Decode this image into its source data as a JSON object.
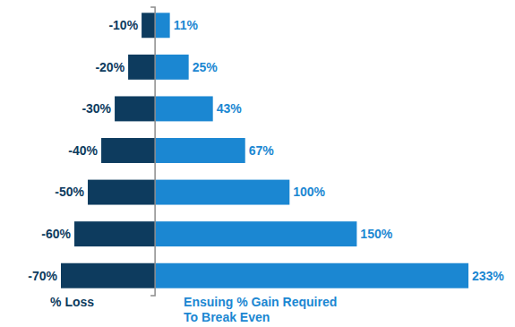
{
  "chart_data": {
    "type": "bar",
    "orientation": "horizontal",
    "data_labels": true,
    "tick_labels": false,
    "legend": "bottom",
    "xlim": [
      -70,
      233
    ],
    "series": [
      {
        "name": "% Loss",
        "color": "#0d3b5e",
        "values": [
          -10,
          -20,
          -30,
          -40,
          -50,
          -60,
          -70
        ],
        "value_labels": [
          "-10%",
          "-20%",
          "-30%",
          "-40%",
          "-50%",
          "-60%",
          "-70%"
        ]
      },
      {
        "name": "Ensuing % Gain Required To Break Even",
        "color": "#1b87d2",
        "values": [
          11,
          25,
          43,
          67,
          100,
          150,
          233
        ],
        "value_labels": [
          "11%",
          "25%",
          "43%",
          "67%",
          "100%",
          "150%",
          "233%"
        ]
      }
    ]
  }
}
